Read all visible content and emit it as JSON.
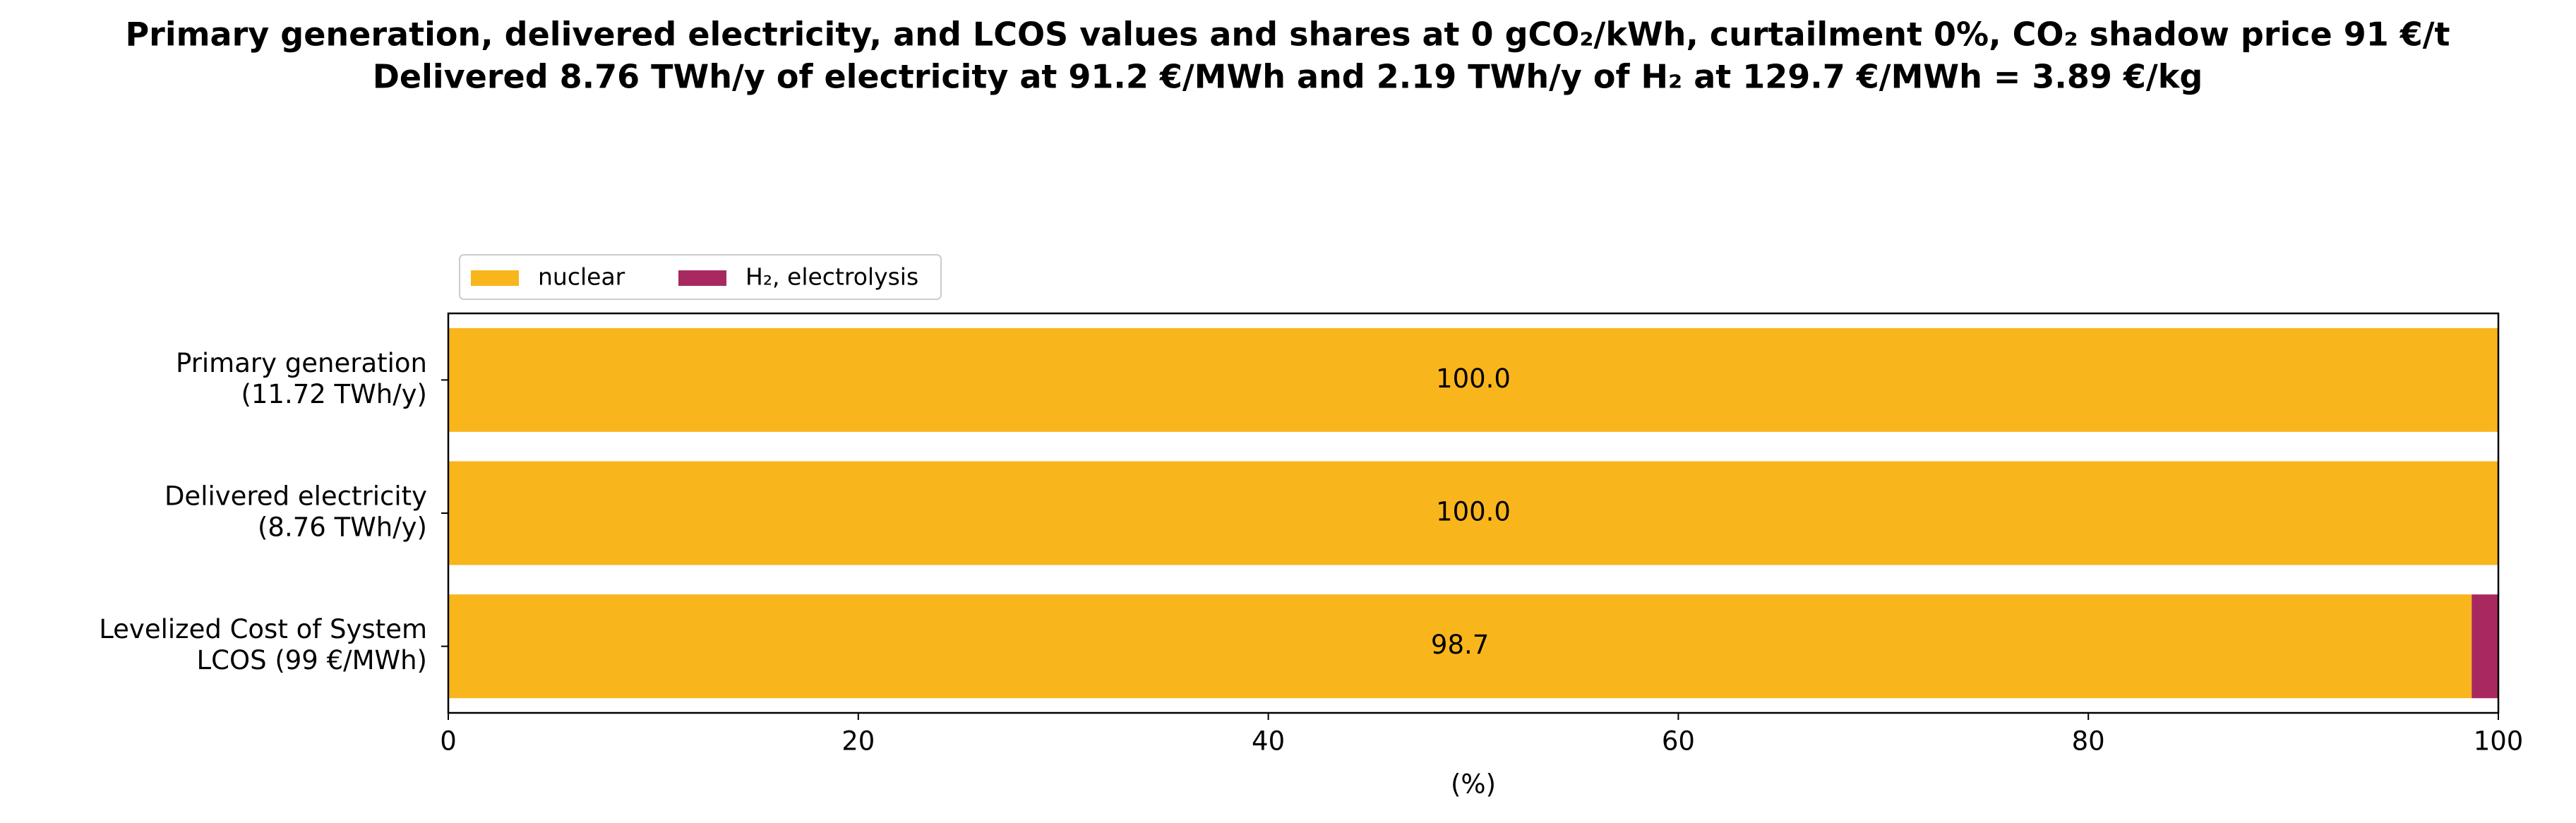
{
  "chart_data": {
    "type": "stacked-barh",
    "title": [
      "Primary generation, delivered electricity, and LCOS values and shares at 0 gCO₂/kWh, curtailment 0%, CO₂ shadow price 91 €/t",
      "Delivered 8.76 TWh/y of electricity at 91.2 €/MWh and 2.19 TWh/y of H₂ at 129.7 €/MWh = 3.89 €/kg"
    ],
    "categories": [
      [
        "Primary generation",
        "(11.72 TWh/y)"
      ],
      [
        "Delivered electricity",
        "(8.76 TWh/y)"
      ],
      [
        "Levelized Cost of System",
        "LCOS  (99 €/MWh)"
      ]
    ],
    "series": [
      {
        "name": "nuclear",
        "color": "#f9b51c",
        "values": [
          100,
          100,
          98.7
        ],
        "value_labels": [
          "100.0",
          "100.0",
          "98.7"
        ]
      },
      {
        "name": "H₂, electrolysis",
        "color": "#a8295f",
        "values": [
          0,
          0,
          1.3
        ]
      }
    ],
    "xlabel": "(%)",
    "xlim": [
      0,
      100
    ],
    "xticks": [
      0,
      20,
      40,
      60,
      80,
      100
    ],
    "legend": "upper left outside"
  }
}
